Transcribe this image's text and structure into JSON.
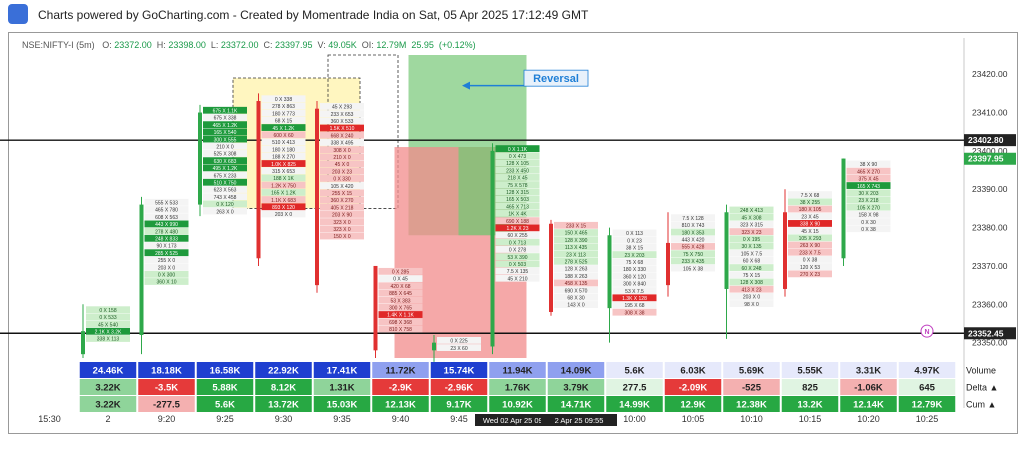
{
  "header": {
    "text": "Charts powered by GoCharting.com - Created by Momentrade India on Sat, 05 Apr 2025 17:12:49 GMT"
  },
  "title": {
    "symbol": "NSE:NIFTY-I (5m)",
    "o_label": "O:",
    "o": "23372.00",
    "h_label": "H:",
    "h": "23398.00",
    "l_label": "L:",
    "l": "23372.00",
    "c_label": "C:",
    "c": "23397.95",
    "v_label": "V:",
    "v": "49.05K",
    "oi_label": "OI:",
    "oi": "12.79M",
    "chg": "25.95",
    "chg_pct": "(+0.12%)"
  },
  "colors": {
    "up": "#2ea84a",
    "down": "#e03030",
    "reversal_box": "#76c776",
    "red_zone": "#f28b8b",
    "yellow_zone": "#fff6c0",
    "annotation": "#1f7fd6"
  },
  "chart_data": {
    "type": "footprint",
    "y_axis": {
      "range": [
        23346,
        23425
      ],
      "ticks": [
        23420.0,
        23410.0,
        23400.0,
        23390.0,
        23380.0,
        23370.0,
        23360.0,
        23350.0
      ]
    },
    "price_labels": [
      {
        "value": "23402.80",
        "price": 23402.8,
        "style": "dark"
      },
      {
        "value": "23397.95",
        "price": 23397.95,
        "style": "green"
      },
      {
        "value": "23352.45",
        "price": 23352.45,
        "style": "dark"
      }
    ],
    "x_labels": [
      "15:30",
      "2",
      "9:20",
      "9:25",
      "9:30",
      "9:35",
      "9:40",
      "9:45",
      "",
      "",
      "10:00",
      "10:05",
      "10:10",
      "10:15",
      "10:20",
      "10:25"
    ],
    "x_label_note": [
      "Wed 02 Apr 25 09:50",
      "2 Apr 25 09:55"
    ],
    "annotation": {
      "text": "Reversal"
    },
    "candles": [
      {
        "o": 23347,
        "h": 23360,
        "l": 23346,
        "c": 23353,
        "rows": [
          [
            "0 X 158",
            "g"
          ],
          [
            "0 X 533",
            "g"
          ],
          [
            "45 X 540",
            "g"
          ],
          [
            "2.1K X 3.2K",
            "G"
          ],
          [
            "338 X 113",
            "g"
          ]
        ]
      },
      {
        "o": 23352,
        "h": 23388,
        "l": 23347,
        "c": 23386,
        "rows": [
          [
            "555 X 533",
            "w"
          ],
          [
            "465 X 780",
            "w"
          ],
          [
            "608 X 563",
            "w"
          ],
          [
            "443 X 990",
            "G"
          ],
          [
            "278 X 480",
            "g"
          ],
          [
            "248 X 833",
            "G"
          ],
          [
            "90 X 173",
            "w"
          ],
          [
            "285 X 525",
            "G"
          ],
          [
            "255 X 0",
            "w"
          ],
          [
            "203 X 0",
            "w"
          ],
          [
            "0 X 300",
            "g"
          ],
          [
            "360 X 10",
            "g"
          ]
        ]
      },
      {
        "o": 23386,
        "h": 23412,
        "l": 23383,
        "c": 23410,
        "rows": [
          [
            "675 X 1.1K",
            "G"
          ],
          [
            "675 X 338",
            "w"
          ],
          [
            "465 X 1.2K",
            "G"
          ],
          [
            "165 X 540",
            "G"
          ],
          [
            "300 X 555",
            "G"
          ],
          [
            "210 X 0",
            "w"
          ],
          [
            "525 X 308",
            "w"
          ],
          [
            "630 X 683",
            "G"
          ],
          [
            "495 X 1.2K",
            "G"
          ],
          [
            "675 X 233",
            "w"
          ],
          [
            "510 X 750",
            "G"
          ],
          [
            "623 X 563",
            "w"
          ],
          [
            "743 X 458",
            "w"
          ],
          [
            "0 X 120",
            "g"
          ],
          [
            "263 X 0",
            "w"
          ]
        ]
      },
      {
        "o": 23413,
        "h": 23415,
        "l": 23370,
        "c": 23372,
        "rows": [
          [
            "0 X 338",
            "w"
          ],
          [
            "278 X 863",
            "w"
          ],
          [
            "180 X 773",
            "w"
          ],
          [
            "68 X 15",
            "w"
          ],
          [
            "45 X 1.2K",
            "G"
          ],
          [
            "600 X 60",
            "r"
          ],
          [
            "510 X 413",
            "w"
          ],
          [
            "180 X 180",
            "w"
          ],
          [
            "188 X 270",
            "w"
          ],
          [
            "1.0K X 825",
            "R"
          ],
          [
            "315 X 653",
            "w"
          ],
          [
            "188 X 1K",
            "g"
          ],
          [
            "1.2K X 750",
            "r"
          ],
          [
            "165 X 1.2K",
            "g"
          ],
          [
            "1.1K X 683",
            "r"
          ],
          [
            "893 X 120",
            "R"
          ],
          [
            "203 X 0",
            "w"
          ]
        ]
      },
      {
        "o": 23411,
        "h": 23413,
        "l": 23363,
        "c": 23365,
        "rows": [
          [
            "45 X 293",
            "w"
          ],
          [
            "233 X 653",
            "w"
          ],
          [
            "360 X 533",
            "w"
          ],
          [
            "1.5K X 510",
            "R"
          ],
          [
            "668 X 240",
            "r"
          ],
          [
            "338 X 495",
            "w"
          ],
          [
            "308 X 0",
            "r"
          ],
          [
            "210 X 0",
            "r"
          ],
          [
            "45 X 0",
            "r"
          ],
          [
            "203 X 23",
            "r"
          ],
          [
            "0 X 330",
            "r"
          ],
          [
            "105 X 420",
            "w"
          ],
          [
            "255 X 15",
            "r"
          ],
          [
            "360 X 270",
            "r"
          ],
          [
            "405 X 218",
            "r"
          ],
          [
            "203 X 90",
            "r"
          ],
          [
            "323 X 0",
            "r"
          ],
          [
            "323 X 0",
            "r"
          ],
          [
            "150 X 0",
            "r"
          ]
        ]
      },
      {
        "o": 23370,
        "h": 23370,
        "l": 23346,
        "c": 23348,
        "rows": [
          [
            "0 X 285",
            "r"
          ],
          [
            "0 X 45",
            "w"
          ],
          [
            "420 X 68",
            "r"
          ],
          [
            "885 X 645",
            "r"
          ],
          [
            "53 X 383",
            "r"
          ],
          [
            "300 X 765",
            "r"
          ],
          [
            "1.4K X 1.1K",
            "R"
          ],
          [
            "698 X 368",
            "r"
          ],
          [
            "810 X 758",
            "r"
          ]
        ]
      },
      {
        "o": 23348,
        "h": 23352,
        "l": 23345,
        "c": 23350,
        "rows": [
          [
            "0 X 225",
            "w"
          ],
          [
            "23 X 60",
            "w"
          ]
        ]
      },
      {
        "o": 23349,
        "h": 23402,
        "l": 23347,
        "c": 23400,
        "rows": [
          [
            "0 X 1.1K",
            "G"
          ],
          [
            "0 X 473",
            "g"
          ],
          [
            "128 X 105",
            "g"
          ],
          [
            "233 X 450",
            "g"
          ],
          [
            "218 X 45",
            "g"
          ],
          [
            "75 X 578",
            "g"
          ],
          [
            "128 X 315",
            "g"
          ],
          [
            "165 X 503",
            "g"
          ],
          [
            "465 X 713",
            "g"
          ],
          [
            "1K X 4K",
            "g"
          ],
          [
            "690 X 188",
            "r"
          ],
          [
            "1.2K X 23",
            "R"
          ],
          [
            "60 X 255",
            "w"
          ],
          [
            "0 X 713",
            "g"
          ],
          [
            "0 X 278",
            "w"
          ],
          [
            "53 X 390",
            "g"
          ],
          [
            "0 X 503",
            "g"
          ],
          [
            "7.5 X 135",
            "w"
          ],
          [
            "45 X 210",
            "w"
          ]
        ]
      },
      {
        "o": 23381,
        "h": 23382,
        "l": 23357,
        "c": 23358,
        "rows": [
          [
            "233 X 15",
            "r"
          ],
          [
            "150 X 465",
            "g"
          ],
          [
            "128 X 390",
            "g"
          ],
          [
            "113 X 435",
            "g"
          ],
          [
            "23 X 113",
            "g"
          ],
          [
            "278 X 525",
            "g"
          ],
          [
            "128 X 263",
            "w"
          ],
          [
            "188 X 263",
            "w"
          ],
          [
            "458 X 135",
            "r"
          ],
          [
            "690 X 570",
            "w"
          ],
          [
            "68 X 30",
            "w"
          ],
          [
            "143 X 0",
            "w"
          ]
        ]
      },
      {
        "o": 23359,
        "h": 23380,
        "l": 23350,
        "c": 23378,
        "rows": [
          [
            "0 X 113",
            "w"
          ],
          [
            "0 X 23",
            "w"
          ],
          [
            "38 X 15",
            "w"
          ],
          [
            "23 X 203",
            "g"
          ],
          [
            "75 X 68",
            "w"
          ],
          [
            "180 X 330",
            "w"
          ],
          [
            "360 X 120",
            "w"
          ],
          [
            "300 X 840",
            "w"
          ],
          [
            "53 X 7.5",
            "w"
          ],
          [
            "1.3K X 128",
            "R"
          ],
          [
            "195 X 68",
            "w"
          ],
          [
            "308 X 38",
            "r"
          ]
        ]
      },
      {
        "o": 23376,
        "h": 23384,
        "l": 23362,
        "c": 23365,
        "rows": [
          [
            "7.5 X 128",
            "w"
          ],
          [
            "810 X 743",
            "w"
          ],
          [
            "180 X 353",
            "g"
          ],
          [
            "443 X 420",
            "w"
          ],
          [
            "555 X 428",
            "r"
          ],
          [
            "75 X 750",
            "g"
          ],
          [
            "233 X 435",
            "g"
          ],
          [
            "105 X 38",
            "w"
          ]
        ]
      },
      {
        "o": 23364,
        "h": 23386,
        "l": 23351,
        "c": 23384,
        "rows": [
          [
            "248 X 413",
            "g"
          ],
          [
            "45 X 308",
            "g"
          ],
          [
            "323 X 315",
            "w"
          ],
          [
            "323 X 23",
            "r"
          ],
          [
            "0 X 195",
            "g"
          ],
          [
            "30 X 135",
            "g"
          ],
          [
            "105 X 7.5",
            "w"
          ],
          [
            "60 X 68",
            "w"
          ],
          [
            "60 X 248",
            "g"
          ],
          [
            "75 X 15",
            "w"
          ],
          [
            "128 X 308",
            "g"
          ],
          [
            "413 X 23",
            "r"
          ],
          [
            "203 X 0",
            "w"
          ],
          [
            "98 X 0",
            "w"
          ]
        ]
      },
      {
        "o": 23384,
        "h": 23390,
        "l": 23362,
        "c": 23364,
        "rows": [
          [
            "7.5 X 68",
            "w"
          ],
          [
            "38 X 255",
            "g"
          ],
          [
            "180 X 105",
            "r"
          ],
          [
            "23 X 45",
            "w"
          ],
          [
            "338 X 90",
            "R"
          ],
          [
            "45 X 15",
            "w"
          ],
          [
            "105 X 293",
            "g"
          ],
          [
            "263 X 90",
            "r"
          ],
          [
            "233 X 7.5",
            "r"
          ],
          [
            "0 X 38",
            "w"
          ],
          [
            "120 X 53",
            "w"
          ],
          [
            "270 X 23",
            "r"
          ]
        ]
      },
      {
        "o": 23372,
        "h": 23398,
        "l": 23370,
        "c": 23398,
        "rows": [
          [
            "38 X 90",
            "w"
          ],
          [
            "465 X 270",
            "r"
          ],
          [
            "375 X 45",
            "r"
          ],
          [
            "165 X 743",
            "G"
          ],
          [
            "30 X 203",
            "g"
          ],
          [
            "23 X 218",
            "g"
          ],
          [
            "105 X 270",
            "g"
          ],
          [
            "158 X 98",
            "w"
          ],
          [
            "0 X 30",
            "w"
          ],
          [
            "0 X 38",
            "w"
          ]
        ]
      }
    ],
    "stats": {
      "labels": [
        "Volume",
        "Delta ▲",
        "Cum ▲"
      ],
      "volume": [
        "24.46K",
        "18.18K",
        "16.58K",
        "22.92K",
        "17.41K",
        "11.72K",
        "15.74K",
        "11.94K",
        "14.09K",
        "5.6K",
        "6.03K",
        "5.69K",
        "5.55K",
        "3.31K",
        "4.97K"
      ],
      "delta": [
        "3.22K",
        "-3.5K",
        "5.88K",
        "8.12K",
        "1.31K",
        "-2.9K",
        "-2.96K",
        "1.76K",
        "3.79K",
        "277.5",
        "-2.09K",
        "-525",
        "825",
        "-1.06K",
        "645"
      ],
      "cum": [
        "3.22K",
        "-277.5",
        "5.6K",
        "13.72K",
        "15.03K",
        "12.13K",
        "9.17K",
        "10.92K",
        "14.71K",
        "14.99K",
        "12.9K",
        "12.38K",
        "13.2K",
        "12.14K",
        "12.79K"
      ]
    }
  }
}
